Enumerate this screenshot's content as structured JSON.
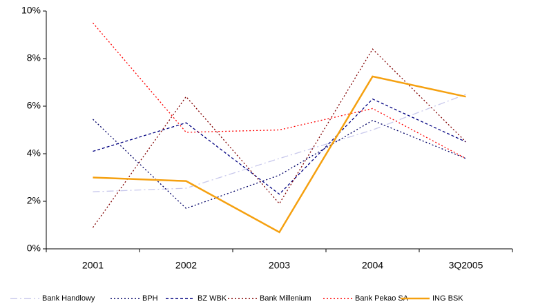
{
  "chart_data": {
    "type": "line",
    "categories": [
      "2001",
      "2002",
      "2003",
      "2004",
      "3Q2005"
    ],
    "ylim": [
      0,
      10
    ],
    "yticks": [
      {
        "value": 0,
        "label": "0%"
      },
      {
        "value": 2,
        "label": "2%"
      },
      {
        "value": 4,
        "label": "4%"
      },
      {
        "value": 6,
        "label": "6%"
      },
      {
        "value": 8,
        "label": "8%"
      },
      {
        "value": 10,
        "label": "10%"
      }
    ],
    "grid": false,
    "legend": "bottom",
    "series": [
      {
        "name": "Bank Handlowy",
        "color": "#c8c8ec",
        "style": "dashdot",
        "values": [
          2.4,
          2.55,
          3.8,
          5.0,
          6.5
        ]
      },
      {
        "name": "BPH",
        "color": "#000066",
        "style": "dotted",
        "values": [
          5.45,
          1.7,
          3.1,
          5.4,
          3.8
        ]
      },
      {
        "name": "BZ WBK",
        "color": "#000080",
        "style": "dashed",
        "values": [
          4.1,
          5.3,
          2.3,
          6.3,
          4.5
        ]
      },
      {
        "name": "Bank Millenium",
        "color": "#800000",
        "style": "dotted",
        "values": [
          0.9,
          6.4,
          1.9,
          8.4,
          4.5
        ]
      },
      {
        "name": "Bank Pekao SA",
        "color": "#ff0000",
        "style": "dotted",
        "values": [
          9.5,
          4.9,
          5.0,
          5.9,
          3.8
        ]
      },
      {
        "name": "ING BSK",
        "color": "#f5a00f",
        "style": "solid",
        "values": [
          3.0,
          2.85,
          0.7,
          7.25,
          6.4
        ]
      }
    ]
  }
}
